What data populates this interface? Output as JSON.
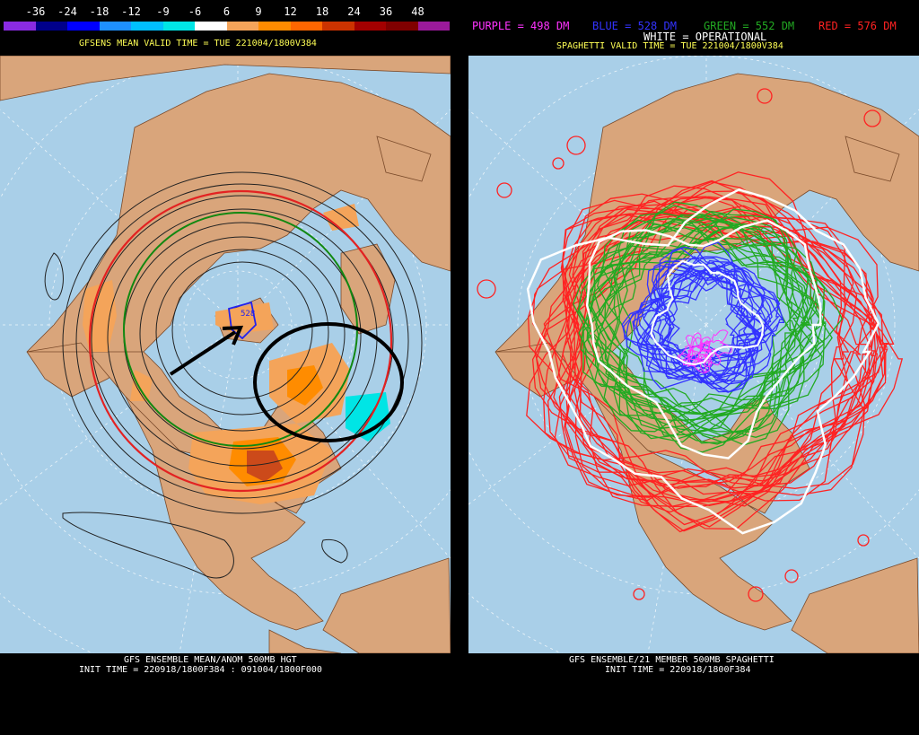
{
  "left": {
    "colorbar": {
      "labels": [
        "-36",
        "-24",
        "-18",
        "-12",
        "-9",
        "-6",
        "6",
        "9",
        "12",
        "18",
        "24",
        "36",
        "48"
      ],
      "colors": [
        "#8a2be2",
        "#00008b",
        "#0000ff",
        "#1e90ff",
        "#00bfff",
        "#00e5e5",
        "#ffffff",
        "#f4a45a",
        "#ff8c00",
        "#ff6600",
        "#cc3300",
        "#a30000",
        "#800000",
        "#9b1a9b"
      ]
    },
    "header": "GFSENS MEAN VALID TIME = TUE 221004/1800V384",
    "contour_label": "528",
    "footer_line1": "GFS ENSEMBLE MEAN/ANOM 500MB HGT",
    "footer_line2": "INIT TIME = 220918/1800F384 : 091004/1800F000"
  },
  "right": {
    "legend": {
      "purple": {
        "text": "PURPLE = 498 DM",
        "color": "#ff33ff"
      },
      "blue": {
        "text": "BLUE = 528 DM",
        "color": "#3333ff"
      },
      "green": {
        "text": "GREEN = 552 DM",
        "color": "#22aa22"
      },
      "red": {
        "text": "RED = 576 DM",
        "color": "#ff2222"
      },
      "white": {
        "text": "WHITE = OPERATIONAL",
        "color": "#ffffff"
      }
    },
    "header": "SPAGHETTI VALID TIME = TUE 221004/1800V384",
    "footer_line1": "GFS ENSEMBLE/21 MEMBER 500MB SPAGHETTI",
    "footer_line2": "INIT TIME = 220918/1800F384"
  }
}
